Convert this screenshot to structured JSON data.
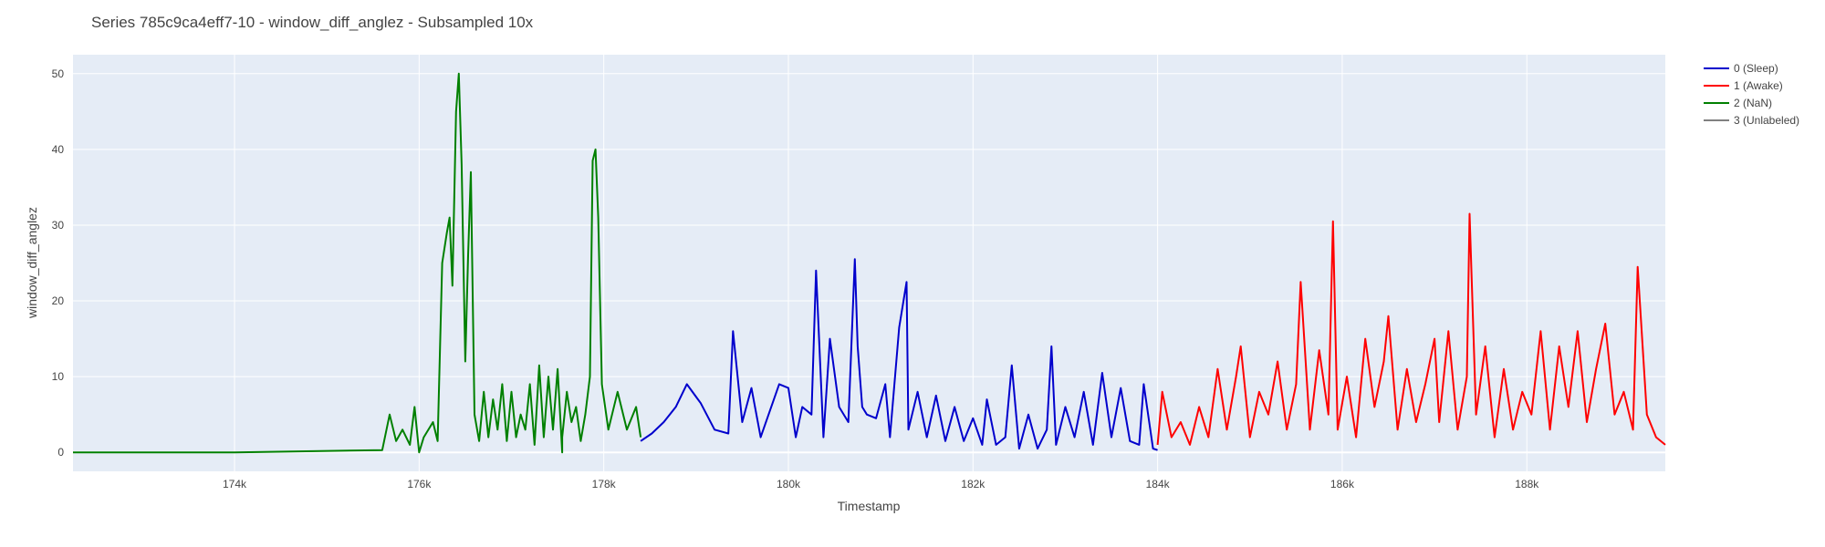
{
  "chart_data": {
    "type": "line",
    "title": "Series 785c9ca4eff7-10 - window_diff_anglez - Subsampled 10x",
    "xlabel": "Timestamp",
    "ylabel": "window_diff_anglez",
    "xlim": [
      172250,
      189500
    ],
    "ylim": [
      -2.5,
      52.5
    ],
    "x_ticks": [
      174000,
      176000,
      178000,
      180000,
      182000,
      184000,
      186000,
      188000
    ],
    "x_tick_labels": [
      "174k",
      "176k",
      "178k",
      "180k",
      "182k",
      "184k",
      "186k",
      "188k"
    ],
    "y_ticks": [
      0,
      10,
      20,
      30,
      40,
      50
    ],
    "y_tick_labels": [
      "0",
      "10",
      "20",
      "30",
      "40",
      "50"
    ],
    "grid": true,
    "legend_position": "top-right",
    "series": [
      {
        "name": "0 (Sleep)",
        "color": "#0000cc",
        "x": [
          178400,
          178520,
          178650,
          178780,
          178900,
          179050,
          179200,
          179350,
          179400,
          179500,
          179600,
          179700,
          179900,
          180000,
          180080,
          180150,
          180250,
          180300,
          180380,
          180450,
          180550,
          180650,
          180720,
          180750,
          180800,
          180850,
          180950,
          181050,
          181100,
          181200,
          181280,
          181300,
          181400,
          181500,
          181600,
          181700,
          181800,
          181900,
          182000,
          182100,
          182150,
          182250,
          182350,
          182420,
          182500,
          182600,
          182700,
          182800,
          182850,
          182900,
          183000,
          183100,
          183200,
          183300,
          183400,
          183500,
          183600,
          183700,
          183800,
          183850,
          183950,
          184000
        ],
        "y": [
          1.5,
          2.5,
          4.0,
          6.0,
          9.0,
          6.5,
          3.0,
          2.5,
          16.0,
          4.0,
          8.5,
          2.0,
          9.0,
          8.5,
          2.0,
          6.0,
          5.0,
          24.0,
          2.0,
          15.0,
          6.0,
          4.0,
          25.5,
          14.0,
          6.0,
          5.0,
          4.5,
          9.0,
          2.0,
          16.5,
          22.5,
          3.0,
          8.0,
          2.0,
          7.5,
          1.5,
          6.0,
          1.5,
          4.5,
          1.0,
          7.0,
          1.0,
          2.0,
          11.5,
          0.5,
          5.0,
          0.5,
          3.0,
          14.0,
          1.0,
          6.0,
          2.0,
          8.0,
          1.0,
          10.5,
          2.0,
          8.5,
          1.5,
          1.0,
          9.0,
          0.5,
          0.3
        ]
      },
      {
        "name": "1 (Awake)",
        "color": "#ff0000",
        "x": [
          184000,
          184050,
          184150,
          184250,
          184350,
          184450,
          184550,
          184650,
          184750,
          184850,
          184900,
          185000,
          185100,
          185200,
          185300,
          185400,
          185500,
          185550,
          185650,
          185750,
          185850,
          185900,
          185950,
          186050,
          186150,
          186250,
          186350,
          186450,
          186500,
          186600,
          186700,
          186800,
          186900,
          187000,
          187050,
          187150,
          187250,
          187350,
          187380,
          187450,
          187550,
          187650,
          187750,
          187850,
          187950,
          188050,
          188150,
          188250,
          188350,
          188450,
          188550,
          188650,
          188750,
          188850,
          188950,
          189050,
          189150,
          189200,
          189300,
          189400,
          189500
        ],
        "y": [
          1.0,
          8.0,
          2.0,
          4.0,
          1.0,
          6.0,
          2.0,
          11.0,
          3.0,
          10.0,
          14.0,
          2.0,
          8.0,
          5.0,
          12.0,
          3.0,
          9.0,
          22.5,
          3.0,
          13.5,
          5.0,
          30.5,
          3.0,
          10.0,
          2.0,
          15.0,
          6.0,
          12.0,
          18.0,
          3.0,
          11.0,
          4.0,
          9.0,
          15.0,
          4.0,
          16.0,
          3.0,
          10.0,
          31.5,
          5.0,
          14.0,
          2.0,
          11.0,
          3.0,
          8.0,
          5.0,
          16.0,
          3.0,
          14.0,
          6.0,
          16.0,
          4.0,
          11.0,
          17.0,
          5.0,
          8.0,
          3.0,
          24.5,
          5.0,
          2.0,
          1.0
        ]
      },
      {
        "name": "2 (NaN)",
        "color": "#008000",
        "x": [
          172250,
          174000,
          176000,
          177550,
          175600,
          175680,
          175750,
          175820,
          175900,
          175950,
          176050,
          176150,
          176200,
          176250,
          176300,
          176330,
          176360,
          176400,
          176430,
          176460,
          176500,
          176530,
          176560,
          176600,
          176650,
          176700,
          176750,
          176800,
          176850,
          176900,
          176950,
          177000,
          177050,
          177100,
          177150,
          177200,
          177250,
          177300,
          177350,
          177400,
          177450,
          177500,
          177550,
          177600,
          177650,
          177700,
          177750,
          177800,
          177850,
          177880,
          177910,
          177940,
          177980,
          178050,
          178150,
          178250,
          178350,
          178400
        ],
        "y": [
          0,
          0,
          0,
          0,
          0.3,
          5.0,
          1.5,
          3.0,
          1.0,
          6.0,
          2.0,
          4.0,
          1.5,
          25.0,
          29.0,
          31.0,
          22.0,
          45.0,
          50.0,
          38.0,
          12.0,
          26.0,
          37.0,
          5.0,
          1.5,
          8.0,
          2.0,
          7.0,
          3.0,
          9.0,
          1.5,
          8.0,
          2.0,
          5.0,
          3.0,
          9.0,
          1.0,
          11.5,
          2.0,
          10.0,
          3.0,
          11.0,
          2.0,
          8.0,
          4.0,
          6.0,
          1.5,
          5.0,
          10.0,
          38.5,
          40.0,
          31.0,
          9.0,
          3.0,
          8.0,
          3.0,
          6.0,
          2.0
        ]
      },
      {
        "name": "3 (Unlabeled)",
        "color": "#808080",
        "x": [],
        "y": []
      }
    ]
  }
}
